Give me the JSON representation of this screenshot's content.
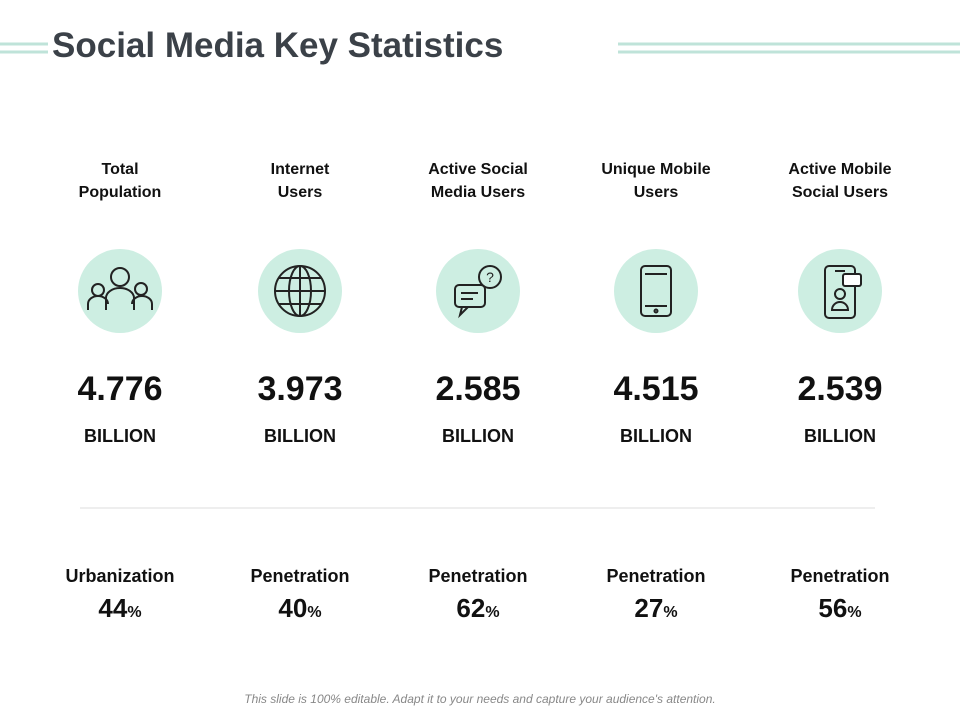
{
  "header": {
    "title": "Social Media Key Statistics"
  },
  "columns": [
    {
      "label_lines": [
        "Total",
        "Population"
      ],
      "value": "4.776",
      "unit": "BILLION",
      "metric": "Urbanization",
      "percent": "44",
      "percent_sign": "%"
    },
    {
      "label_lines": [
        "Internet",
        "Users"
      ],
      "value": "3.973",
      "unit": "BILLION",
      "metric": "Penetration",
      "percent": "40",
      "percent_sign": "%"
    },
    {
      "label_lines": [
        "Active Social",
        "Media Users"
      ],
      "value": "2.585",
      "unit": "BILLION",
      "metric": "Penetration",
      "percent": "62",
      "percent_sign": "%"
    },
    {
      "label_lines": [
        "Unique Mobile",
        "Users"
      ],
      "value": "4.515",
      "unit": "BILLION",
      "metric": "Penetration",
      "percent": "27",
      "percent_sign": "%"
    },
    {
      "label_lines": [
        "Active Mobile",
        "Social Users"
      ],
      "value": "2.539",
      "unit": "BILLION",
      "metric": "Penetration",
      "percent": "56",
      "percent_sign": "%"
    }
  ],
  "footer": {
    "note": "This slide is 100% editable. Adapt it to your needs and capture your audience's attention."
  }
}
